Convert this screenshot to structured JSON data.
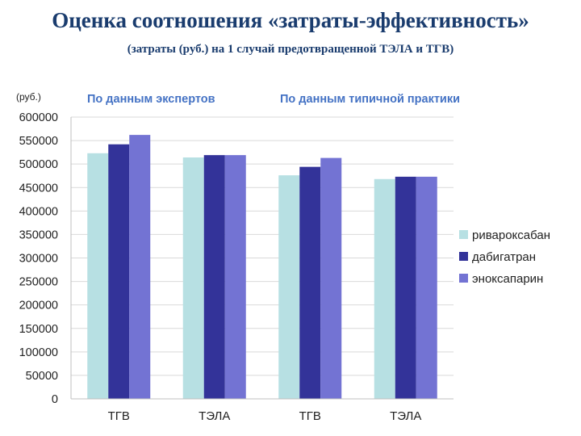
{
  "slide": {
    "title": "Оценка соотношения «затраты-эффективность»",
    "subtitle": "(затраты (руб.) на 1 случай предотвращенной ТЭЛА и ТГВ)"
  },
  "colors": {
    "title": "#1a3c6e",
    "group_header": "#4472c4",
    "rivaroxaban": "#b7e0e3",
    "dabigatran": "#333399",
    "enoxaparin": "#7373d3"
  },
  "chart_data": {
    "type": "bar",
    "unit_label": "(руб.)",
    "group_headers": [
      "По данным экспертов",
      "По данным типичной практики"
    ],
    "categories": [
      "ТГВ",
      "ТЭЛА",
      "ТГВ",
      "ТЭЛА"
    ],
    "series": [
      {
        "name": "ривароксабан",
        "color": "#b7e0e3",
        "values": [
          523000,
          514000,
          476000,
          468000
        ]
      },
      {
        "name": "дабигатран",
        "color": "#333399",
        "values": [
          542000,
          519000,
          494000,
          473000
        ]
      },
      {
        "name": "эноксапарин",
        "color": "#7373d3",
        "values": [
          562000,
          519000,
          513000,
          473000
        ]
      }
    ],
    "ylim": [
      0,
      600000
    ],
    "yticks": [
      "0",
      "50000",
      "100000",
      "150000",
      "200000",
      "250000",
      "300000",
      "350000",
      "400000",
      "450000",
      "500000",
      "550000",
      "600000"
    ],
    "grid": true,
    "legend_position": "right"
  }
}
